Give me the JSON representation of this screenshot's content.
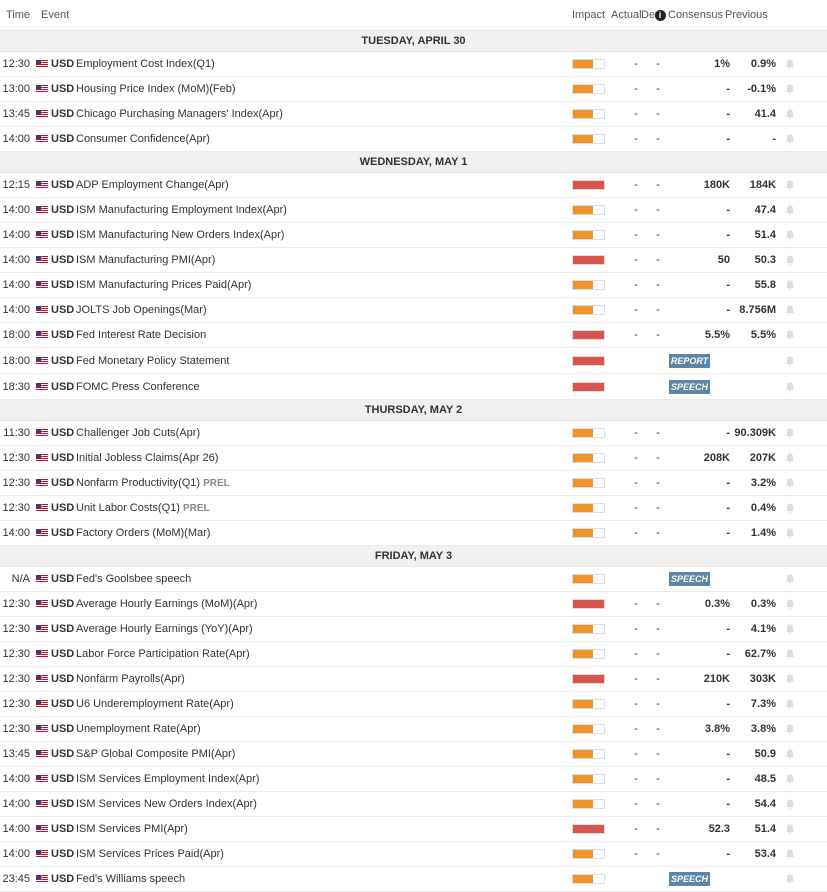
{
  "header": {
    "time": "Time",
    "event": "Event",
    "impact": "Impact",
    "actual": "Actual",
    "dev": "Dev",
    "consensus": "Consensus",
    "previous": "Previous",
    "info": "i"
  },
  "colors": {
    "high": "#d9534f",
    "medium": "#f0932b",
    "tag": "#5b86a8"
  },
  "days": [
    {
      "label": "TUESDAY, APRIL 30",
      "events": [
        {
          "time": "12:30",
          "cur": "USD",
          "name": "Employment Cost Index(Q1)",
          "impact": "medium",
          "actual": "-",
          "dev": "-",
          "cons": "1%",
          "prev": "0.9%"
        },
        {
          "time": "13:00",
          "cur": "USD",
          "name": "Housing Price Index (MoM)(Feb)",
          "impact": "medium",
          "actual": "-",
          "dev": "-",
          "cons": "-",
          "prev": "-0.1%"
        },
        {
          "time": "13:45",
          "cur": "USD",
          "name": "Chicago Purchasing Managers' Index(Apr)",
          "impact": "medium",
          "actual": "-",
          "dev": "-",
          "cons": "-",
          "prev": "41.4"
        },
        {
          "time": "14:00",
          "cur": "USD",
          "name": "Consumer Confidence(Apr)",
          "impact": "medium",
          "actual": "-",
          "dev": "-",
          "cons": "-",
          "prev": "-"
        }
      ]
    },
    {
      "label": "WEDNESDAY, MAY 1",
      "events": [
        {
          "time": "12:15",
          "cur": "USD",
          "name": "ADP Employment Change(Apr)",
          "impact": "high",
          "actual": "-",
          "dev": "-",
          "cons": "180K",
          "prev": "184K"
        },
        {
          "time": "14:00",
          "cur": "USD",
          "name": "ISM Manufacturing Employment Index(Apr)",
          "impact": "medium",
          "actual": "-",
          "dev": "-",
          "cons": "-",
          "prev": "47.4"
        },
        {
          "time": "14:00",
          "cur": "USD",
          "name": "ISM Manufacturing New Orders Index(Apr)",
          "impact": "medium",
          "actual": "-",
          "dev": "-",
          "cons": "-",
          "prev": "51.4"
        },
        {
          "time": "14:00",
          "cur": "USD",
          "name": "ISM Manufacturing PMI(Apr)",
          "impact": "high",
          "actual": "-",
          "dev": "-",
          "cons": "50",
          "prev": "50.3"
        },
        {
          "time": "14:00",
          "cur": "USD",
          "name": "ISM Manufacturing Prices Paid(Apr)",
          "impact": "medium",
          "actual": "-",
          "dev": "-",
          "cons": "-",
          "prev": "55.8"
        },
        {
          "time": "14:00",
          "cur": "USD",
          "name": "JOLTS Job Openings(Mar)",
          "impact": "medium",
          "actual": "-",
          "dev": "-",
          "cons": "-",
          "prev": "8.756M"
        },
        {
          "time": "18:00",
          "cur": "USD",
          "name": "Fed Interest Rate Decision",
          "impact": "high",
          "actual": "-",
          "dev": "-",
          "cons": "5.5%",
          "prev": "5.5%"
        },
        {
          "time": "18:00",
          "cur": "USD",
          "name": "Fed Monetary Policy Statement",
          "impact": "high",
          "tag": "REPORT"
        },
        {
          "time": "18:30",
          "cur": "USD",
          "name": "FOMC Press Conference",
          "impact": "high",
          "tag": "SPEECH"
        }
      ]
    },
    {
      "label": "THURSDAY, MAY 2",
      "events": [
        {
          "time": "11:30",
          "cur": "USD",
          "name": "Challenger Job Cuts(Apr)",
          "impact": "medium",
          "actual": "-",
          "dev": "-",
          "cons": "-",
          "prev": "90.309K"
        },
        {
          "time": "12:30",
          "cur": "USD",
          "name": "Initial Jobless Claims(Apr 26)",
          "impact": "medium",
          "actual": "-",
          "dev": "-",
          "cons": "208K",
          "prev": "207K"
        },
        {
          "time": "12:30",
          "cur": "USD",
          "name": "Nonfarm Productivity(Q1)",
          "prel": "PREL",
          "impact": "medium",
          "actual": "-",
          "dev": "-",
          "cons": "-",
          "prev": "3.2%"
        },
        {
          "time": "12:30",
          "cur": "USD",
          "name": "Unit Labor Costs(Q1)",
          "prel": "PREL",
          "impact": "medium",
          "actual": "-",
          "dev": "-",
          "cons": "-",
          "prev": "0.4%"
        },
        {
          "time": "14:00",
          "cur": "USD",
          "name": "Factory Orders (MoM)(Mar)",
          "impact": "medium",
          "actual": "-",
          "dev": "-",
          "cons": "-",
          "prev": "1.4%"
        }
      ]
    },
    {
      "label": "FRIDAY, MAY 3",
      "events": [
        {
          "time": "N/A",
          "cur": "USD",
          "name": "Fed's Goolsbee speech",
          "impact": "medium",
          "tag": "SPEECH"
        },
        {
          "time": "12:30",
          "cur": "USD",
          "name": "Average Hourly Earnings (MoM)(Apr)",
          "impact": "high",
          "actual": "-",
          "dev": "-",
          "cons": "0.3%",
          "prev": "0.3%"
        },
        {
          "time": "12:30",
          "cur": "USD",
          "name": "Average Hourly Earnings (YoY)(Apr)",
          "impact": "medium",
          "actual": "-",
          "dev": "-",
          "cons": "-",
          "prev": "4.1%"
        },
        {
          "time": "12:30",
          "cur": "USD",
          "name": "Labor Force Participation Rate(Apr)",
          "impact": "medium",
          "actual": "-",
          "dev": "-",
          "cons": "-",
          "prev": "62.7%"
        },
        {
          "time": "12:30",
          "cur": "USD",
          "name": "Nonfarm Payrolls(Apr)",
          "impact": "high",
          "actual": "-",
          "dev": "-",
          "cons": "210K",
          "prev": "303K"
        },
        {
          "time": "12:30",
          "cur": "USD",
          "name": "U6 Underemployment Rate(Apr)",
          "impact": "medium",
          "actual": "-",
          "dev": "-",
          "cons": "-",
          "prev": "7.3%"
        },
        {
          "time": "12:30",
          "cur": "USD",
          "name": "Unemployment Rate(Apr)",
          "impact": "medium",
          "actual": "-",
          "dev": "-",
          "cons": "3.8%",
          "prev": "3.8%"
        },
        {
          "time": "13:45",
          "cur": "USD",
          "name": "S&P Global Composite PMI(Apr)",
          "impact": "medium",
          "actual": "-",
          "dev": "-",
          "cons": "-",
          "prev": "50.9"
        },
        {
          "time": "14:00",
          "cur": "USD",
          "name": "ISM Services Employment Index(Apr)",
          "impact": "medium",
          "actual": "-",
          "dev": "-",
          "cons": "-",
          "prev": "48.5"
        },
        {
          "time": "14:00",
          "cur": "USD",
          "name": "ISM Services New Orders Index(Apr)",
          "impact": "medium",
          "actual": "-",
          "dev": "-",
          "cons": "-",
          "prev": "54.4"
        },
        {
          "time": "14:00",
          "cur": "USD",
          "name": "ISM Services PMI(Apr)",
          "impact": "high",
          "actual": "-",
          "dev": "-",
          "cons": "52.3",
          "prev": "51.4"
        },
        {
          "time": "14:00",
          "cur": "USD",
          "name": "ISM Services Prices Paid(Apr)",
          "impact": "medium",
          "actual": "-",
          "dev": "-",
          "cons": "-",
          "prev": "53.4"
        },
        {
          "time": "23:45",
          "cur": "USD",
          "name": "Fed's Williams speech",
          "impact": "medium",
          "tag": "SPEECH"
        }
      ]
    }
  ]
}
